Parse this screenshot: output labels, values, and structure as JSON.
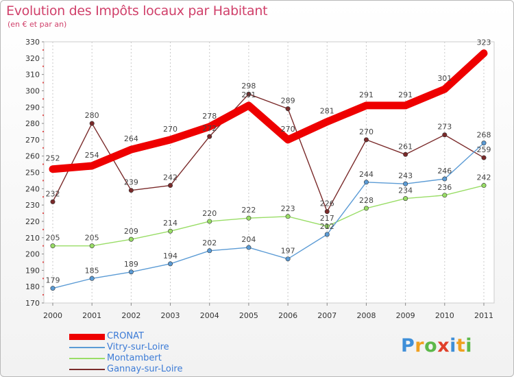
{
  "header": {
    "title": "Evolution des Impôts locaux par Habitant",
    "subtitle": "(en € et par an)"
  },
  "branding": {
    "logo_letters": [
      "P",
      "r",
      "o",
      "x",
      "i",
      "t",
      "i"
    ],
    "logo_colors": [
      "#3f8fd8",
      "#f0a020",
      "#5db84a",
      "#e0402a",
      "#3f8fd8",
      "#f0a020",
      "#5db84a"
    ]
  },
  "chart_data": {
    "type": "line",
    "x": [
      "2000",
      "2001",
      "2002",
      "2003",
      "2004",
      "2005",
      "2006",
      "2007",
      "2008",
      "2009",
      "2010",
      "2011"
    ],
    "ylim": [
      170,
      330
    ],
    "yticks": [
      170,
      180,
      190,
      200,
      210,
      220,
      230,
      240,
      250,
      260,
      270,
      280,
      290,
      300,
      310,
      320,
      330
    ],
    "grid": "vertical-dashed",
    "legend_position": "bottom-left",
    "series": [
      {
        "name": "CRONAT",
        "color": "#ee0000",
        "values": [
          252,
          254,
          264,
          270,
          278,
          291,
          270,
          281,
          291,
          291,
          301,
          323
        ]
      },
      {
        "name": "Vitry-sur-Loire",
        "color": "#5b9bd5",
        "values": [
          179,
          185,
          189,
          194,
          202,
          204,
          197,
          212,
          244,
          243,
          246,
          268
        ]
      },
      {
        "name": "Montambert",
        "color": "#99dd66",
        "values": [
          205,
          205,
          209,
          214,
          220,
          222,
          223,
          217,
          228,
          234,
          236,
          242
        ]
      },
      {
        "name": "Gannay-sur-Loire",
        "color": "#7a2a2a",
        "values": [
          232,
          280,
          239,
          242,
          272,
          298,
          289,
          226,
          270,
          261,
          273,
          259
        ]
      }
    ]
  }
}
